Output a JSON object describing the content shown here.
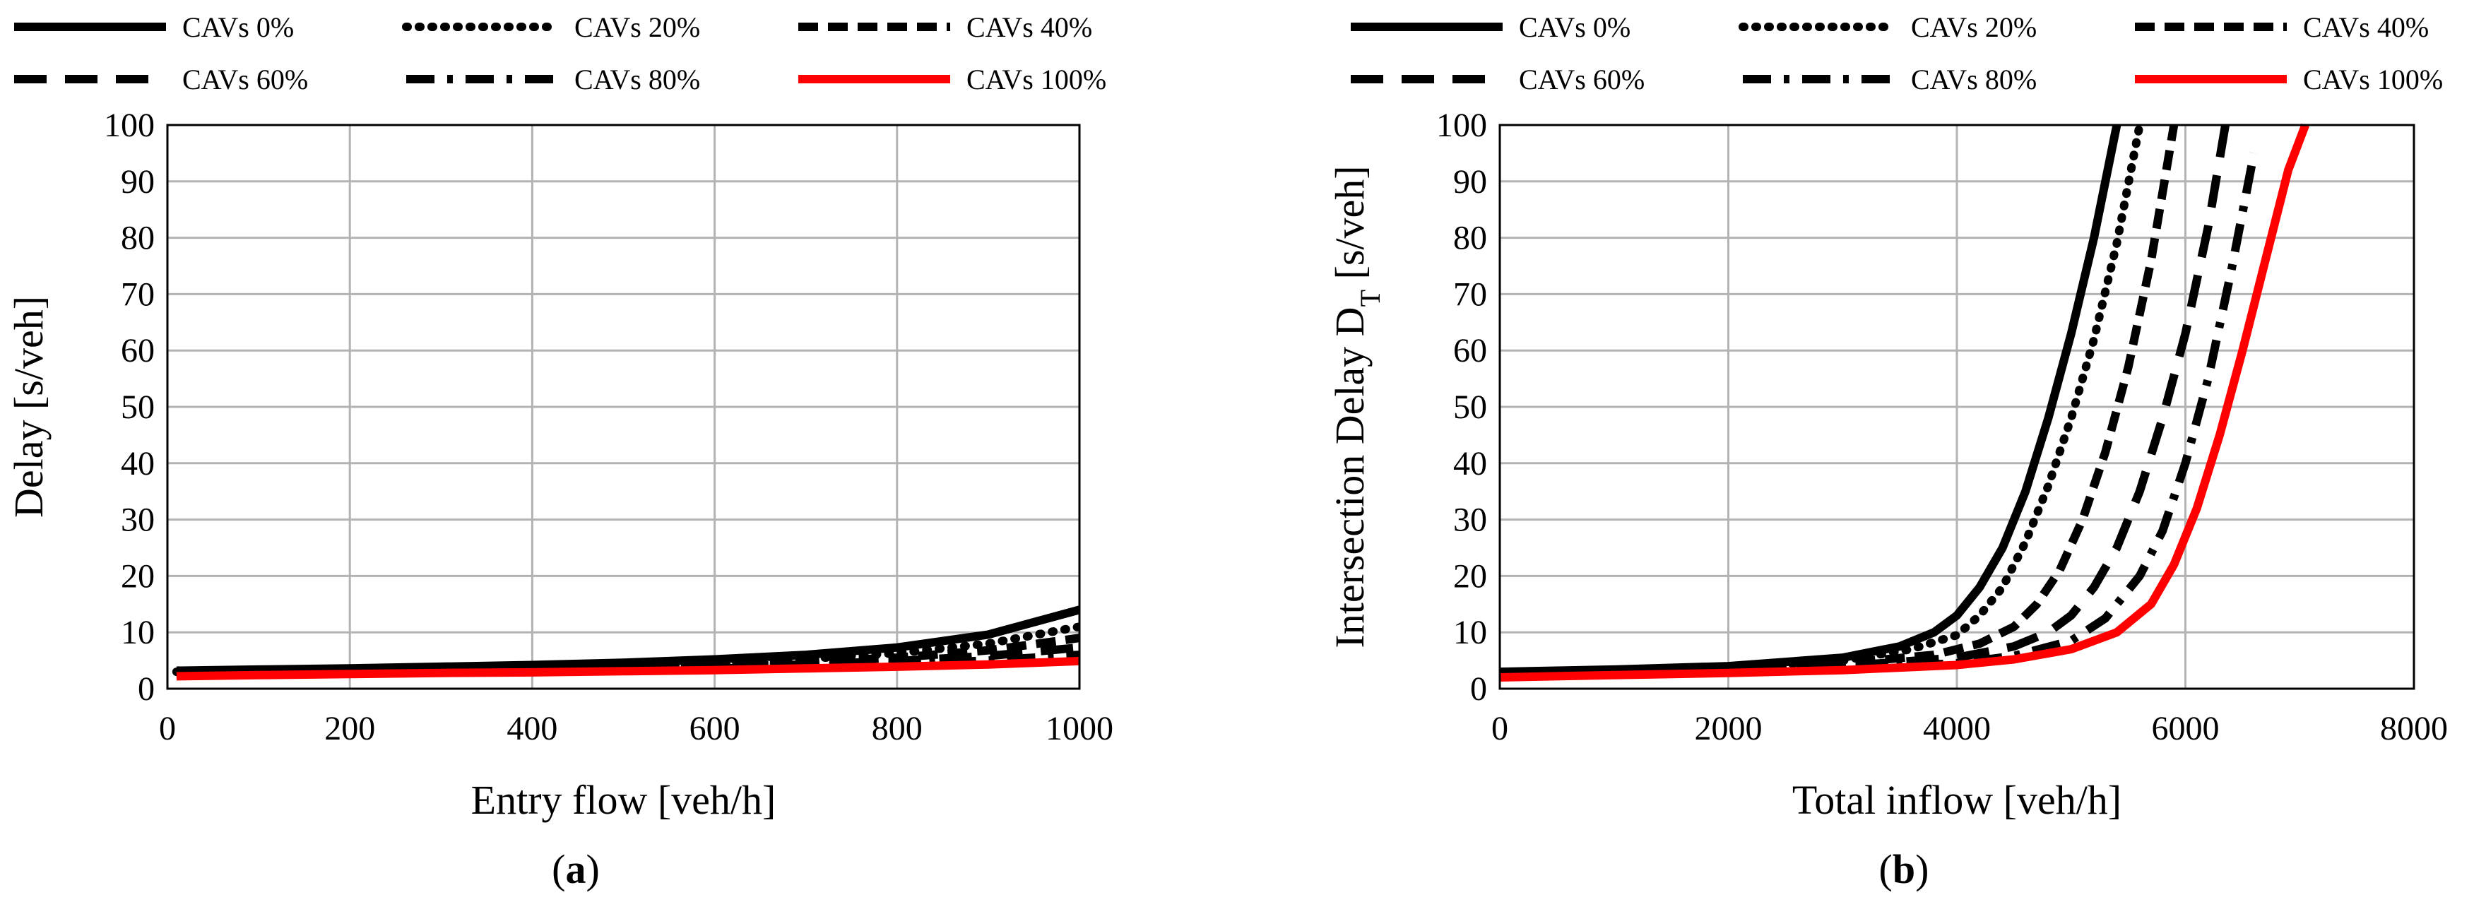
{
  "figure": {
    "caption_a": "a",
    "caption_b": "b"
  },
  "chart_data": [
    {
      "type": "line",
      "panel": "a",
      "xlabel": "Entry flow [veh/h]",
      "ylabel": "Delay [s/veh]",
      "xlim": [
        0,
        1000
      ],
      "ylim": [
        0,
        100
      ],
      "xticks": [
        0,
        200,
        400,
        600,
        800,
        1000
      ],
      "yticks": [
        0,
        10,
        20,
        30,
        40,
        50,
        60,
        70,
        80,
        90,
        100
      ],
      "grid": true,
      "legend_position": "top",
      "series": [
        {
          "name": "CAVs 0%",
          "color": "#000000",
          "dash": "solid",
          "x": [
            10,
            100,
            200,
            300,
            400,
            500,
            600,
            700,
            800,
            900,
            1000
          ],
          "y": [
            3.2,
            3.4,
            3.6,
            3.9,
            4.2,
            4.6,
            5.2,
            6.0,
            7.3,
            9.6,
            14.0
          ]
        },
        {
          "name": "CAVs 20%",
          "color": "#000000",
          "dash": "dot",
          "x": [
            10,
            100,
            200,
            300,
            400,
            500,
            600,
            700,
            800,
            900,
            1000
          ],
          "y": [
            3.0,
            3.2,
            3.4,
            3.6,
            3.9,
            4.2,
            4.7,
            5.3,
            6.3,
            8.0,
            11.0
          ]
        },
        {
          "name": "CAVs 40%",
          "color": "#000000",
          "dash": "dash",
          "x": [
            10,
            100,
            200,
            300,
            400,
            500,
            600,
            700,
            800,
            900,
            1000
          ],
          "y": [
            2.8,
            3.0,
            3.2,
            3.4,
            3.6,
            3.9,
            4.3,
            4.8,
            5.5,
            6.8,
            9.0
          ]
        },
        {
          "name": "CAVs 60%",
          "color": "#000000",
          "dash": "longdash",
          "x": [
            10,
            100,
            200,
            300,
            400,
            500,
            600,
            700,
            800,
            900,
            1000
          ],
          "y": [
            2.6,
            2.8,
            3.0,
            3.2,
            3.4,
            3.6,
            3.9,
            4.3,
            4.9,
            5.8,
            7.3
          ]
        },
        {
          "name": "CAVs 80%",
          "color": "#000000",
          "dash": "dashdot",
          "x": [
            10,
            100,
            200,
            300,
            400,
            500,
            600,
            700,
            800,
            900,
            1000
          ],
          "y": [
            2.4,
            2.6,
            2.8,
            3.0,
            3.2,
            3.4,
            3.6,
            3.9,
            4.3,
            5.0,
            6.0
          ]
        },
        {
          "name": "CAVs 100%",
          "color": "#ff0000",
          "dash": "solid",
          "x": [
            10,
            100,
            200,
            300,
            400,
            500,
            600,
            700,
            800,
            900,
            1000
          ],
          "y": [
            2.2,
            2.4,
            2.6,
            2.8,
            2.9,
            3.1,
            3.3,
            3.6,
            3.9,
            4.3,
            4.9
          ]
        }
      ]
    },
    {
      "type": "line",
      "panel": "b",
      "xlabel": "Total inflow [veh/h]",
      "ylabel": "Intersection Delay D",
      "ylabel_subscript": "T",
      "ylabel_unit": " [s/veh]",
      "xlim": [
        0,
        8000
      ],
      "ylim": [
        0,
        100
      ],
      "xticks": [
        0,
        2000,
        4000,
        6000,
        8000
      ],
      "yticks": [
        0,
        10,
        20,
        30,
        40,
        50,
        60,
        70,
        80,
        90,
        100
      ],
      "grid": true,
      "legend_position": "top",
      "series": [
        {
          "name": "CAVs 0%",
          "color": "#000000",
          "dash": "solid",
          "x": [
            0,
            1000,
            2000,
            3000,
            3500,
            3800,
            4000,
            4200,
            4400,
            4600,
            4800,
            5000,
            5200,
            5400
          ],
          "y": [
            3.0,
            3.4,
            4.0,
            5.5,
            7.5,
            10.0,
            13.0,
            18.0,
            25.0,
            35.0,
            48.0,
            63.0,
            80.0,
            100.0
          ]
        },
        {
          "name": "CAVs 20%",
          "color": "#000000",
          "dash": "dot",
          "x": [
            0,
            1000,
            2000,
            3000,
            3600,
            4000,
            4200,
            4400,
            4600,
            4800,
            5000,
            5200,
            5400,
            5600
          ],
          "y": [
            2.8,
            3.2,
            3.8,
            5.0,
            7.0,
            9.5,
            13.0,
            18.0,
            26.0,
            36.0,
            48.0,
            62.0,
            79.0,
            100.0
          ]
        },
        {
          "name": "CAVs 40%",
          "color": "#000000",
          "dash": "dash",
          "x": [
            0,
            1000,
            2000,
            3000,
            3800,
            4200,
            4500,
            4700,
            4900,
            5100,
            5300,
            5500,
            5700,
            5900
          ],
          "y": [
            2.6,
            3.0,
            3.5,
            4.5,
            6.0,
            8.0,
            11.0,
            15.0,
            21.0,
            30.0,
            42.0,
            57.0,
            76.0,
            100.0
          ]
        },
        {
          "name": "CAVs 60%",
          "color": "#000000",
          "dash": "longdash",
          "x": [
            0,
            1000,
            2000,
            3000,
            4000,
            4500,
            4800,
            5000,
            5200,
            5400,
            5600,
            5800,
            6000,
            6200,
            6350
          ],
          "y": [
            2.5,
            2.8,
            3.2,
            4.0,
            5.5,
            7.5,
            10.0,
            13.0,
            18.0,
            25.0,
            35.0,
            48.0,
            63.0,
            82.0,
            100.0
          ]
        },
        {
          "name": "CAVs 80%",
          "color": "#000000",
          "dash": "dashdot",
          "x": [
            0,
            1000,
            2000,
            3000,
            4000,
            4500,
            5000,
            5300,
            5600,
            5800,
            6000,
            6200,
            6400,
            6600
          ],
          "y": [
            2.3,
            2.6,
            3.0,
            3.6,
            4.5,
            5.8,
            8.5,
            12.5,
            20.0,
            28.0,
            40.0,
            55.0,
            74.0,
            95.0
          ]
        },
        {
          "name": "CAVs 100%",
          "color": "#ff0000",
          "dash": "solid",
          "x": [
            0,
            1000,
            2000,
            3000,
            4000,
            4500,
            5000,
            5400,
            5700,
            5900,
            6100,
            6300,
            6500,
            6700,
            6900,
            7050
          ],
          "y": [
            2.0,
            2.4,
            2.8,
            3.3,
            4.2,
            5.2,
            7.0,
            10.0,
            15.0,
            22.0,
            32.0,
            45.0,
            60.0,
            76.0,
            92.0,
            100.0
          ]
        }
      ]
    }
  ]
}
